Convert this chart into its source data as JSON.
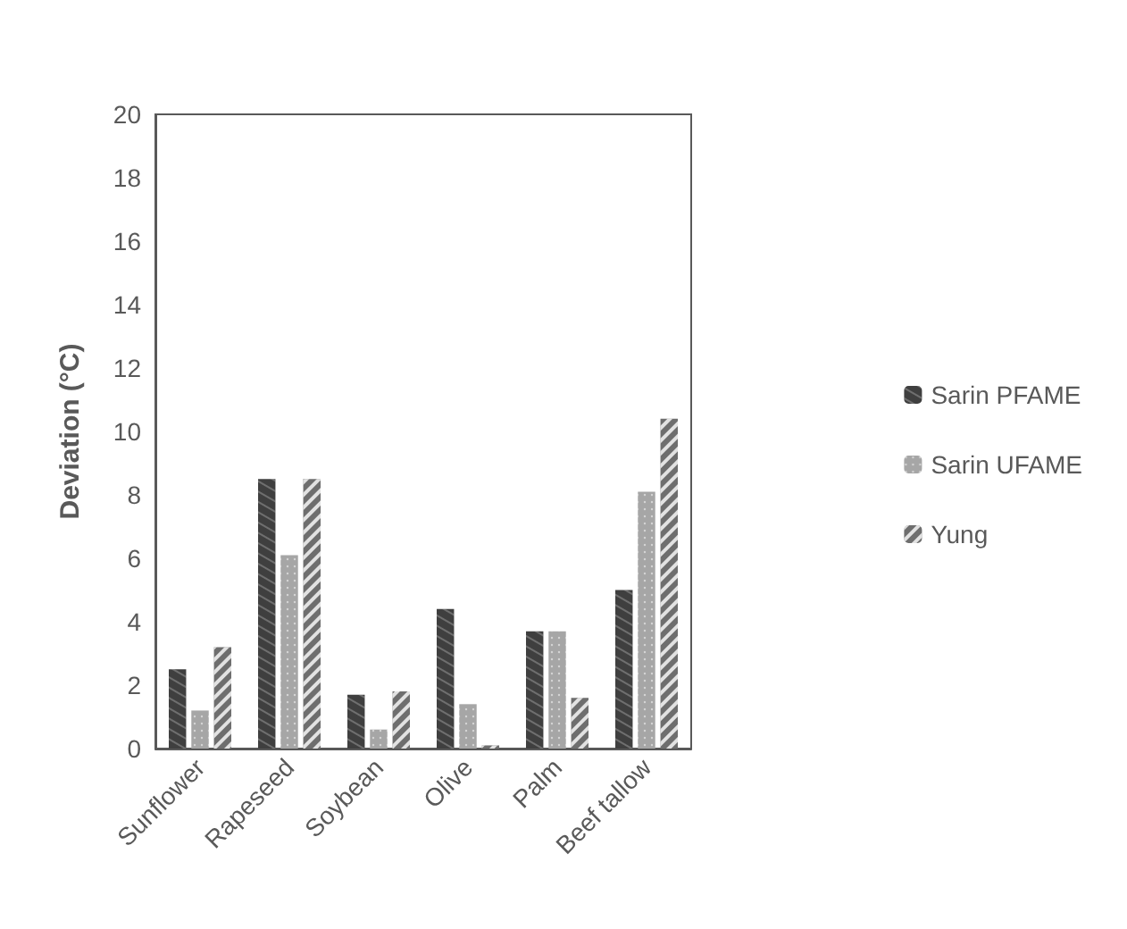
{
  "chart_data": {
    "type": "bar",
    "ylabel": "Deviation (°C)",
    "categories": [
      "Sunflower",
      "Rapeseed",
      "Soybean",
      "Olive",
      "Palm",
      "Beef tallow"
    ],
    "series": [
      {
        "name": "Sarin PFAME",
        "color": "#3f3f3f",
        "values": [
          2.5,
          8.5,
          1.7,
          4.4,
          3.7,
          5.0
        ]
      },
      {
        "name": "Sarin UFAME",
        "color": "#a6a6a6",
        "values": [
          1.2,
          6.1,
          0.6,
          1.4,
          3.7,
          8.1
        ]
      },
      {
        "name": "Yung",
        "color": "#6e6e6e",
        "values": [
          3.2,
          8.5,
          1.8,
          0.1,
          1.6,
          10.4
        ]
      }
    ],
    "ylim": [
      0,
      20
    ],
    "yticks": [
      0,
      2,
      4,
      6,
      8,
      10,
      12,
      14,
      16,
      18,
      20
    ],
    "grid": false,
    "legend": "right"
  }
}
